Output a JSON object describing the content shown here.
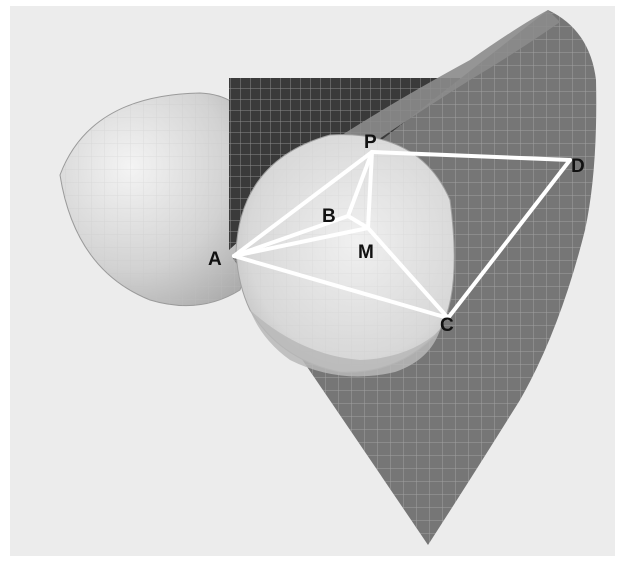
{
  "figure": {
    "points": [
      {
        "id": "A",
        "label": "A"
      },
      {
        "id": "B",
        "label": "B"
      },
      {
        "id": "C",
        "label": "C"
      },
      {
        "id": "D",
        "label": "D"
      },
      {
        "id": "M",
        "label": "M"
      },
      {
        "id": "P",
        "label": "P"
      }
    ],
    "segments": [
      [
        "A",
        "P"
      ],
      [
        "A",
        "B"
      ],
      [
        "A",
        "M"
      ],
      [
        "A",
        "C"
      ],
      [
        "P",
        "D"
      ],
      [
        "P",
        "B"
      ],
      [
        "P",
        "M"
      ],
      [
        "C",
        "D"
      ],
      [
        "C",
        "M"
      ],
      [
        "B",
        "M"
      ]
    ],
    "colors": {
      "background": "#ececec",
      "cone_surface": "#767676",
      "grid_lines": "#c2c2c2",
      "cylinder_surface": "#3a3a3a",
      "sphere_surface": "#d9d9d9",
      "segment_color": "#ffffff"
    }
  }
}
